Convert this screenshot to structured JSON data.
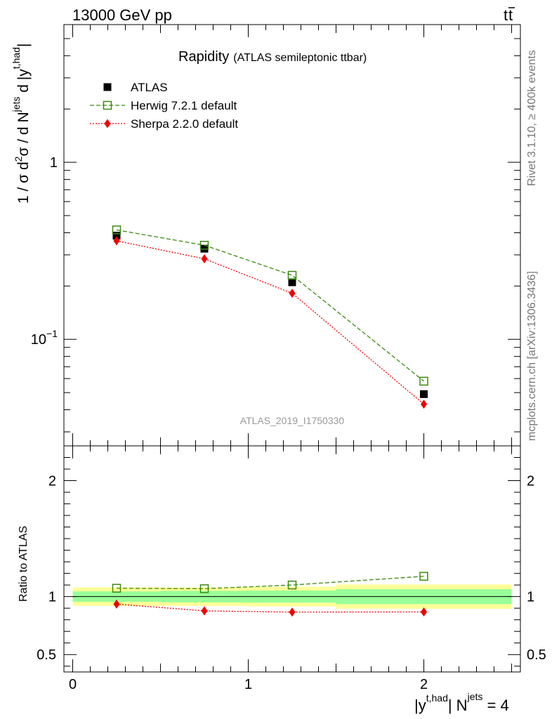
{
  "header": {
    "left": "13000 GeV pp",
    "right_t": "t",
    "right_tbar": "t"
  },
  "side_labels": {
    "rivet": "Rivet 3.1.10, ≥ 400k events",
    "mcplots": "mcplots.cern.ch [arXiv:1306.3436]"
  },
  "colors": {
    "atlas": "#000000",
    "herwig": "#3a8a10",
    "sherpa": "#ee0000",
    "band_inner": "#99ff99",
    "band_outer": "#ffff99",
    "watermark": "#999999"
  },
  "chart_data": [
    {
      "type": "line",
      "title": "Rapidity",
      "subtitle": "(ATLAS semileptonic ttbar)",
      "watermark": "ATLAS_2019_I1750330",
      "ylabel": {
        "p1": "1 / σ d",
        "p2": "2",
        "p3": "σ / d N",
        "p4": "jets",
        "p5": " d |y",
        "p6": "t,had",
        "p7": "|"
      },
      "yscale": "log",
      "ylim": [
        0.025,
        6.0
      ],
      "xlim": [
        -0.05,
        2.55
      ],
      "y_ticks": [
        {
          "value": 1.0,
          "label": "1"
        },
        {
          "value": 0.1,
          "label": "10",
          "sup": "−1"
        }
      ],
      "legend_position": "top-left",
      "series": [
        {
          "name": "ATLAS",
          "marker": "filled-square",
          "x": [
            0.25,
            0.75,
            1.25,
            2.0
          ],
          "y": [
            0.385,
            0.325,
            0.21,
            0.049
          ]
        },
        {
          "name": "Herwig 7.2.1 default",
          "marker": "open-square",
          "line": "dashed",
          "x": [
            0.25,
            0.75,
            1.25,
            2.0
          ],
          "y": [
            0.415,
            0.34,
            0.23,
            0.058
          ]
        },
        {
          "name": "Sherpa 2.2.0 default",
          "marker": "diamond",
          "line": "dotted",
          "x": [
            0.25,
            0.75,
            1.25,
            2.0
          ],
          "y": [
            0.36,
            0.285,
            0.182,
            0.043
          ]
        }
      ]
    },
    {
      "type": "line",
      "ylabel": "Ratio to ATLAS",
      "xlabel": {
        "p1": "|y",
        "p2": "t,had",
        "p3": "| N",
        "p4": "jets",
        "p5": " = 4"
      },
      "ylim": [
        0.35,
        2.3
      ],
      "xlim": [
        -0.05,
        2.55
      ],
      "x_ticks": [
        {
          "value": 0,
          "label": "0"
        },
        {
          "value": 1,
          "label": "1"
        },
        {
          "value": 2,
          "label": "2"
        }
      ],
      "y_ticks": [
        {
          "value": 2,
          "label": "2"
        },
        {
          "value": 1,
          "label": "1"
        },
        {
          "value": 0.5,
          "label": "0.5"
        }
      ],
      "bands": [
        {
          "x_from": 0.0,
          "x_to": 0.5,
          "inner": [
            0.955,
            1.045
          ],
          "outer": [
            0.92,
            1.08
          ]
        },
        {
          "x_from": 0.5,
          "x_to": 1.0,
          "inner": [
            0.95,
            1.05
          ],
          "outer": [
            0.92,
            1.08
          ]
        },
        {
          "x_from": 1.0,
          "x_to": 1.5,
          "inner": [
            0.948,
            1.052
          ],
          "outer": [
            0.915,
            1.085
          ]
        },
        {
          "x_from": 1.5,
          "x_to": 2.5,
          "inner": [
            0.935,
            1.065
          ],
          "outer": [
            0.895,
            1.105
          ]
        }
      ],
      "series": [
        {
          "name": "Herwig 7.2.1 default",
          "marker": "open-square",
          "line": "dashed",
          "x": [
            0.25,
            0.75,
            1.25,
            2.0
          ],
          "y": [
            1.072,
            1.068,
            1.1,
            1.175
          ]
        },
        {
          "name": "Sherpa 2.2.0 default",
          "marker": "diamond",
          "line": "dotted",
          "x": [
            0.25,
            0.75,
            1.25,
            2.0
          ],
          "y": [
            0.935,
            0.877,
            0.866,
            0.868
          ]
        }
      ]
    }
  ]
}
